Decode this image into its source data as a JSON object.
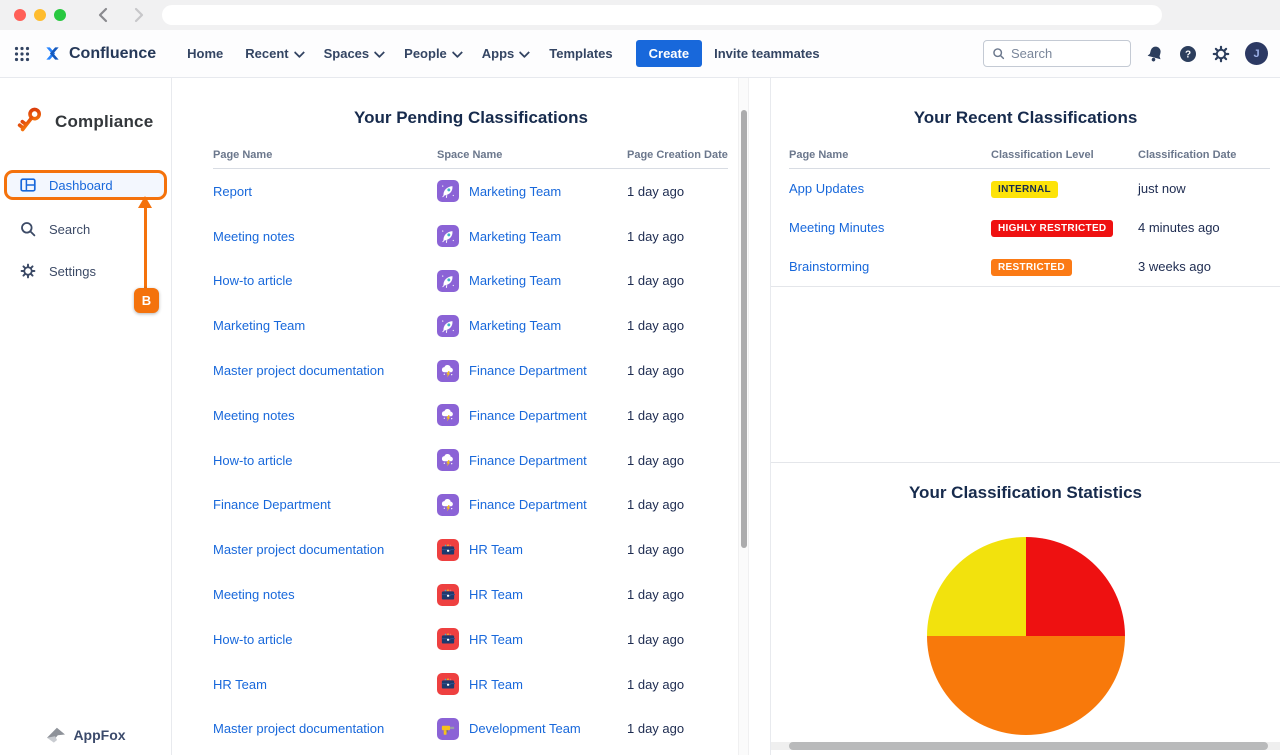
{
  "browser": {
    "url": ""
  },
  "nav": {
    "brand": "Confluence",
    "menu": [
      {
        "label": "Home",
        "chevron": false
      },
      {
        "label": "Recent",
        "chevron": true
      },
      {
        "label": "Spaces",
        "chevron": true
      },
      {
        "label": "People",
        "chevron": true
      },
      {
        "label": "Apps",
        "chevron": true
      },
      {
        "label": "Templates",
        "chevron": false
      }
    ],
    "create_label": "Create",
    "invite_label": "Invite teammates",
    "search_placeholder": "Search",
    "avatar_initial": "J"
  },
  "sidebar": {
    "app_title": "Compliance",
    "items": [
      {
        "label": "Dashboard",
        "active": true
      },
      {
        "label": "Search",
        "active": false
      },
      {
        "label": "Settings",
        "active": false
      }
    ],
    "annotation_label": "B",
    "footer_brand": "AppFox"
  },
  "pending": {
    "title": "Your Pending Classifications",
    "columns": [
      "Page Name",
      "Space Name",
      "Page Creation Date"
    ],
    "rows": [
      {
        "page": "Report",
        "space": "Marketing Team",
        "space_icon": "rocket-icon",
        "date": "1 day ago"
      },
      {
        "page": "Meeting notes",
        "space": "Marketing Team",
        "space_icon": "rocket-icon",
        "date": "1 day ago"
      },
      {
        "page": "How-to article",
        "space": "Marketing Team",
        "space_icon": "rocket-icon",
        "date": "1 day ago"
      },
      {
        "page": "Marketing Team",
        "space": "Marketing Team",
        "space_icon": "rocket-icon",
        "date": "1 day ago"
      },
      {
        "page": "Master project documentation",
        "space": "Finance Department",
        "space_icon": "storm-cloud-icon",
        "date": "1 day ago"
      },
      {
        "page": "Meeting notes",
        "space": "Finance Department",
        "space_icon": "storm-cloud-icon",
        "date": "1 day ago"
      },
      {
        "page": "How-to article",
        "space": "Finance Department",
        "space_icon": "storm-cloud-icon",
        "date": "1 day ago"
      },
      {
        "page": "Finance Department",
        "space": "Finance Department",
        "space_icon": "storm-cloud-icon",
        "date": "1 day ago"
      },
      {
        "page": "Master project documentation",
        "space": "HR Team",
        "space_icon": "toolbox-icon",
        "date": "1 day ago"
      },
      {
        "page": "Meeting notes",
        "space": "HR Team",
        "space_icon": "toolbox-icon",
        "date": "1 day ago"
      },
      {
        "page": "How-to article",
        "space": "HR Team",
        "space_icon": "toolbox-icon",
        "date": "1 day ago"
      },
      {
        "page": "HR Team",
        "space": "HR Team",
        "space_icon": "toolbox-icon",
        "date": "1 day ago"
      },
      {
        "page": "Master project documentation",
        "space": "Development Team",
        "space_icon": "drill-icon",
        "date": "1 day ago"
      }
    ]
  },
  "recent": {
    "title": "Your Recent Classifications",
    "columns": [
      "Page Name",
      "Classification Level",
      "Classification Date"
    ],
    "rows": [
      {
        "page": "App Updates",
        "level": "INTERNAL",
        "level_bg": "#FDE309",
        "level_fg": "#172B4D",
        "date": "just now"
      },
      {
        "page": "Meeting Minutes",
        "level": "HIGHLY RESTRICTED",
        "level_bg": "#EF1111",
        "level_fg": "#FFFFFF",
        "date": "4 minutes ago"
      },
      {
        "page": "Brainstorming",
        "level": "RESTRICTED",
        "level_bg": "#FB7A15",
        "level_fg": "#FFFFFF",
        "date": "3 weeks ago"
      }
    ]
  },
  "chart_data": {
    "type": "pie",
    "title": "Your Classification Statistics",
    "slices": [
      {
        "color": "#EE1111",
        "percent": 25
      },
      {
        "color": "#F8790B",
        "percent": 50
      },
      {
        "color": "#F2E20D",
        "percent": 25
      }
    ],
    "start_angle_deg": 0,
    "direction": "clockwise",
    "labels_visible": false
  }
}
